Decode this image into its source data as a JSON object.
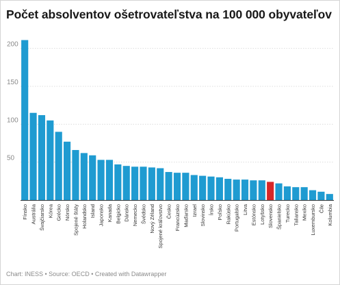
{
  "title": "Počet absolventov ošetrovateľstva na 100 000 obyvateľov",
  "footer": "Chart: INESS • Source: OECD • Created with Datawrapper",
  "colors": {
    "bar": "#1f9bd1",
    "highlight": "#d62728",
    "grid": "#dcdcdc",
    "axis": "#333333",
    "tick_text": "#8a8a8a",
    "label_text": "#333333"
  },
  "chart_data": {
    "type": "bar",
    "title": "Počet absolventov ošetrovateľstva na 100 000 obyvateľov",
    "xlabel": "",
    "ylabel": "",
    "ylim": [
      0,
      225
    ],
    "yticks": [
      0,
      50,
      100,
      150,
      200
    ],
    "grid": true,
    "highlight": "Slovensko",
    "categories": [
      "Fínsko",
      "Austrália",
      "Švajčiarsko",
      "Kórea",
      "Grécko",
      "Nórsko",
      "Spojené štáty",
      "Holandsko",
      "Island",
      "Japonsko",
      "Kanada",
      "Belgicko",
      "Dánsko",
      "Nemecko",
      "Švédsko",
      "Nový Zéland",
      "Spojené kráľovstvo",
      "Česko",
      "Francúzsko",
      "Maďarsko",
      "Izrael",
      "Slovinsko",
      "Írsko",
      "Poľsko",
      "Rakúsko",
      "Portugalsko",
      "Litva",
      "Estónsko",
      "Lotyšsko",
      "Slovensko",
      "Španielsko",
      "Turecko",
      "Taliansko",
      "Mexiko",
      "Luxembursko",
      "Čile",
      "Kolumbia"
    ],
    "values": [
      211,
      115,
      112,
      105,
      90,
      77,
      66,
      62,
      59,
      53,
      53,
      47,
      45,
      44,
      44,
      43,
      42,
      37,
      36,
      36,
      33,
      32,
      31,
      30,
      28,
      27,
      27,
      26,
      26,
      24,
      22,
      18,
      17,
      17,
      13,
      11,
      8
    ]
  }
}
